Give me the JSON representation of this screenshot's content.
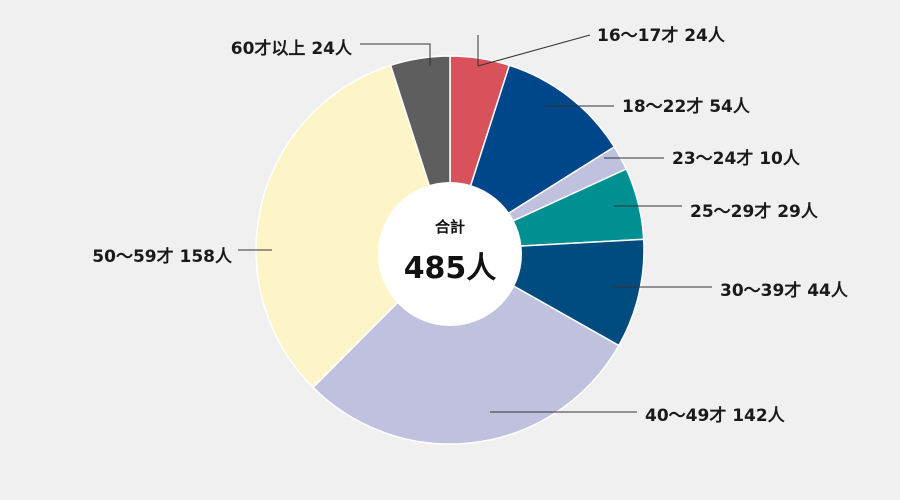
{
  "chart_data": {
    "type": "pie",
    "donut": true,
    "total_label": "合計",
    "total_value": "485人",
    "slices": [
      {
        "name": "16～17才",
        "value": 24,
        "label": "16～17才 24人",
        "color": "#d9525b"
      },
      {
        "name": "18～22才",
        "value": 54,
        "label": "18～22才 54人",
        "color": "#00468b"
      },
      {
        "name": "23～24才",
        "value": 10,
        "label": "23～24才 10人",
        "color": "#bfc1de"
      },
      {
        "name": "25～29才",
        "value": 29,
        "label": "25～29才 29人",
        "color": "#009092"
      },
      {
        "name": "30～39才",
        "value": 44,
        "label": "30～39才 44人",
        "color": "#004c7f"
      },
      {
        "name": "40～49才",
        "value": 142,
        "label": "40～49才 142人",
        "color": "#bfc1de"
      },
      {
        "name": "50～59才",
        "value": 158,
        "label": "50～59才 158人",
        "color": "#fdf5c8"
      },
      {
        "name": "60才以上",
        "value": 24,
        "label": "60才以上 24人",
        "color": "#5e5e5e"
      }
    ]
  }
}
